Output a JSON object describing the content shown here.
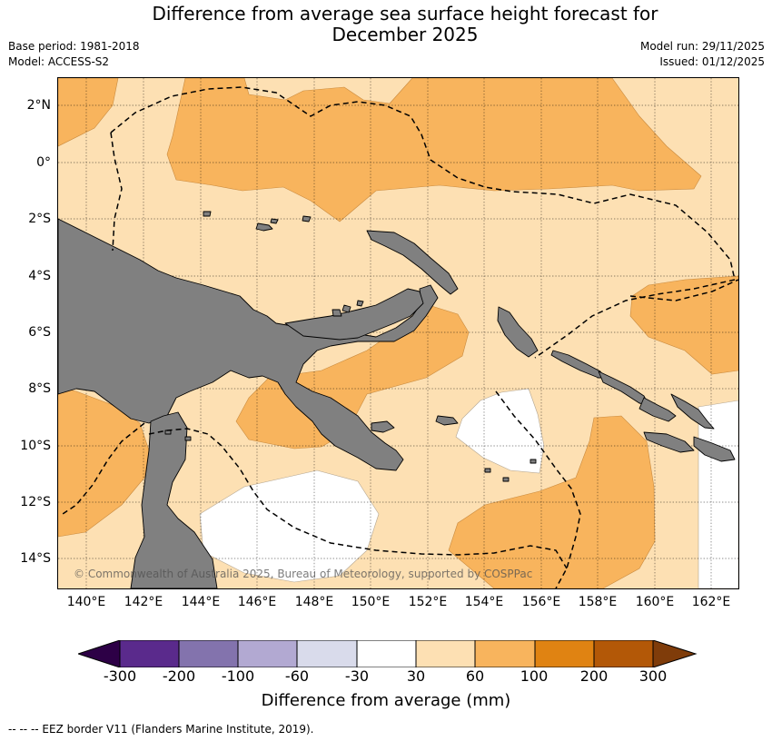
{
  "header": {
    "title_line1": "Difference from average sea surface height forecast for",
    "title_line2": "December 2025",
    "base_period": "Base period: 1981-2018",
    "model": "Model: ACCESS-S2",
    "model_run": "Model run: 29/11/2025",
    "issued": "Issued: 01/12/2025"
  },
  "map": {
    "lat_labels": [
      "2°N",
      "0°",
      "2°S",
      "4°S",
      "6°S",
      "8°S",
      "10°S",
      "12°S",
      "14°S"
    ],
    "lon_labels": [
      "140°E",
      "142°E",
      "144°E",
      "146°E",
      "148°E",
      "150°E",
      "152°E",
      "154°E",
      "156°E",
      "158°E",
      "160°E",
      "162°E"
    ],
    "copyright": "© Commonwealth of Australia 2025, Bureau of Meteorology, supported by COSPPac"
  },
  "legend": {
    "ticks": [
      "-300",
      "-200",
      "-100",
      "-60",
      "-30",
      "30",
      "60",
      "100",
      "200",
      "300"
    ],
    "label": "Difference from average (mm)",
    "colors": {
      "below_min": "#2d0046",
      "n300_n200": "#5a2a8c",
      "n200_n100": "#8373ad",
      "n100_n60": "#b2a9d2",
      "n60_n30": "#d9dbeb",
      "n30_30": "#ffffff",
      "p30_60": "#fde0b3",
      "p60_100": "#f8b45d",
      "p100_200": "#e08312",
      "p200_300": "#b35807",
      "above_max": "#7f3c0a"
    },
    "land_color": "#808080"
  },
  "footnote": "--  --  -- EEZ border V11 (Flanders Marine Institute, 2019)."
}
